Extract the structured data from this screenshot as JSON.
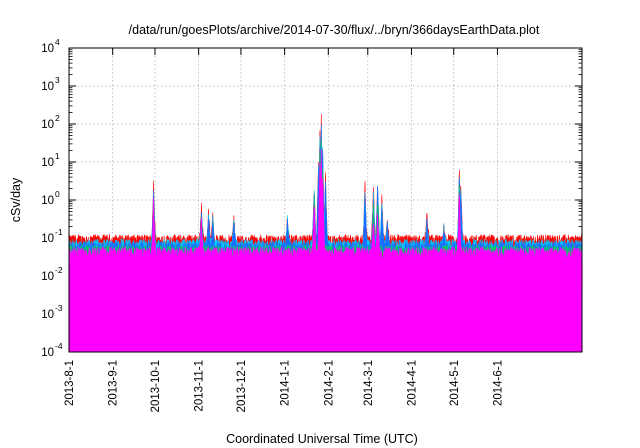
{
  "chart_data": {
    "type": "line",
    "title": "/data/run/goesPlots/archive/2014-07-30/flux/../bryn/366daysEarthData.plot",
    "xlabel": "Coordinated Universal Time (UTC)",
    "ylabel": "cSv/day",
    "yscale": "log",
    "ylim": [
      0.0001,
      10000
    ],
    "xlim": [
      "2013-08-01",
      "2014-07-31"
    ],
    "grid": true,
    "x_ticks": [
      "2013-8-1",
      "2013-9-1",
      "2013-10-1",
      "2013-11-1",
      "2013-12-1",
      "2014-1-1",
      "2014-2-1",
      "2014-3-1",
      "2014-4-1",
      "2014-5-1",
      "2014-6-1"
    ],
    "y_ticks": [
      {
        "base": "10",
        "exp": "-4"
      },
      {
        "base": "10",
        "exp": "-3"
      },
      {
        "base": "10",
        "exp": "-2"
      },
      {
        "base": "10",
        "exp": "-1"
      },
      {
        "base": "10",
        "exp": "0"
      },
      {
        "base": "10",
        "exp": "1"
      },
      {
        "base": "10",
        "exp": "2"
      },
      {
        "base": "10",
        "exp": "3"
      },
      {
        "base": "10",
        "exp": "4"
      }
    ],
    "series": [
      {
        "color": "#ff0000",
        "baseline": 0.085,
        "spikes": [
          [
            60,
            3.0
          ],
          [
            94,
            0.7
          ],
          [
            99,
            0.45
          ],
          [
            102,
            0.35
          ],
          [
            117,
            0.3
          ],
          [
            155,
            0.35
          ],
          [
            174,
            2.3
          ],
          [
            177,
            10
          ],
          [
            178,
            60
          ],
          [
            179,
            140
          ],
          [
            180,
            30
          ],
          [
            182,
            5
          ],
          [
            210,
            2.4
          ],
          [
            216,
            2.0
          ],
          [
            219,
            3.0
          ],
          [
            222,
            1.0
          ],
          [
            226,
            0.3
          ],
          [
            254,
            0.4
          ],
          [
            266,
            0.2
          ],
          [
            277,
            6.5
          ],
          [
            278,
            2.5
          ]
        ]
      },
      {
        "color": "#00c8ff",
        "baseline": 0.065,
        "spikes": [
          [
            60,
            2.0
          ],
          [
            94,
            0.55
          ],
          [
            99,
            0.35
          ],
          [
            102,
            0.28
          ],
          [
            117,
            0.25
          ],
          [
            155,
            0.3
          ],
          [
            174,
            1.8
          ],
          [
            177,
            7
          ],
          [
            178,
            40
          ],
          [
            179,
            95
          ],
          [
            180,
            20
          ],
          [
            182,
            3
          ],
          [
            210,
            2.0
          ],
          [
            216,
            1.5
          ],
          [
            219,
            2.2
          ],
          [
            222,
            0.8
          ],
          [
            226,
            0.25
          ],
          [
            254,
            0.3
          ],
          [
            266,
            0.17
          ],
          [
            277,
            5.0
          ],
          [
            278,
            1.8
          ]
        ]
      },
      {
        "color": "#1a6eff",
        "baseline": 0.055,
        "spikes": [
          [
            60,
            1.6
          ],
          [
            94,
            0.45
          ],
          [
            99,
            0.3
          ],
          [
            102,
            0.24
          ],
          [
            117,
            0.22
          ],
          [
            155,
            0.25
          ],
          [
            174,
            1.5
          ],
          [
            177,
            5
          ],
          [
            178,
            30
          ],
          [
            179,
            70
          ],
          [
            180,
            15
          ],
          [
            182,
            2.5
          ],
          [
            210,
            1.6
          ],
          [
            216,
            1.2
          ],
          [
            219,
            1.8
          ],
          [
            222,
            0.6
          ],
          [
            226,
            0.2
          ],
          [
            254,
            0.25
          ],
          [
            266,
            0.15
          ],
          [
            277,
            4.0
          ],
          [
            278,
            1.5
          ]
        ]
      },
      {
        "color": "#00cc66",
        "baseline": 0.045,
        "spikes": [
          [
            60,
            1.0
          ],
          [
            94,
            0.3
          ],
          [
            174,
            1.0
          ],
          [
            178,
            15
          ],
          [
            179,
            30
          ],
          [
            180,
            8
          ],
          [
            216,
            0.8
          ],
          [
            219,
            1.0
          ],
          [
            277,
            2.0
          ]
        ]
      },
      {
        "color": "#ff00ff",
        "baseline": 0.04,
        "spikes": [
          [
            60,
            0.8
          ],
          [
            94,
            0.25
          ],
          [
            174,
            0.9
          ],
          [
            178,
            10
          ],
          [
            179,
            20
          ],
          [
            180,
            5
          ],
          [
            216,
            0.3
          ],
          [
            219,
            0.4
          ],
          [
            277,
            1.6
          ]
        ]
      }
    ]
  }
}
